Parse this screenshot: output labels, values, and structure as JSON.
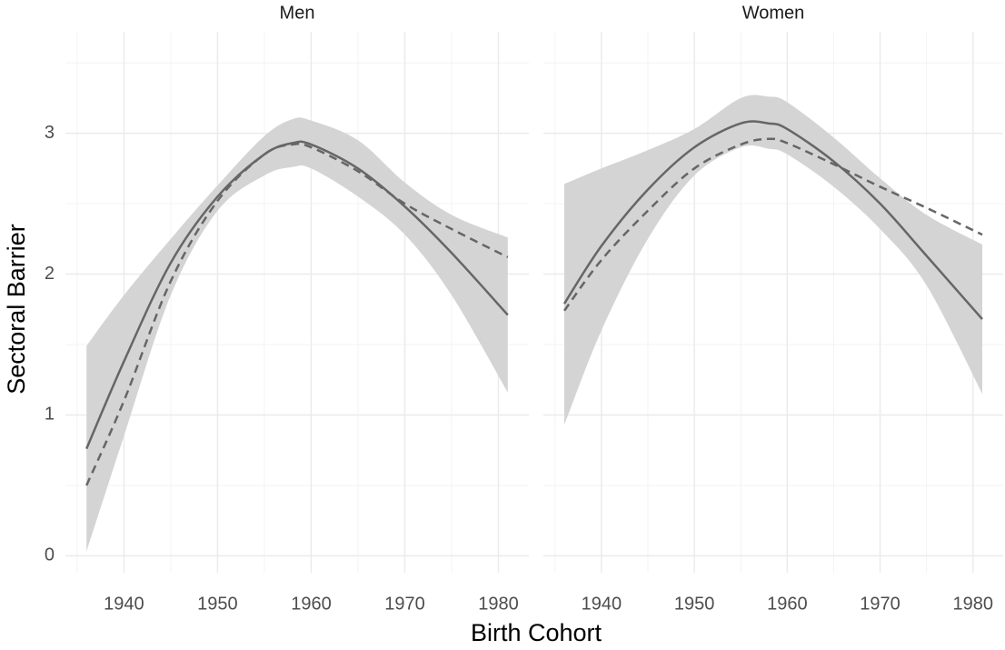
{
  "axis_labels": {
    "x": "Birth Cohort",
    "y": "Sectoral Barrier"
  },
  "chart_data": [
    {
      "type": "line",
      "title": "Men",
      "x": [
        1936,
        1940,
        1945,
        1950,
        1955,
        1958,
        1960,
        1965,
        1970,
        1975,
        1981
      ],
      "xlim": [
        1933.75,
        1983.25
      ],
      "xticks": [
        1940,
        1950,
        1960,
        1970,
        1980
      ],
      "minor_xticks": [
        1935,
        1945,
        1955,
        1965,
        1975
      ],
      "ylim": [
        -0.12,
        3.72
      ],
      "yticks": [
        0,
        1,
        2,
        3
      ],
      "minor_yticks": [
        0.5,
        1.5,
        2.5,
        3.5
      ],
      "grid": true,
      "ribbon": {
        "color": "#d4d4d4",
        "upper": [
          1.49,
          1.85,
          2.25,
          2.63,
          2.98,
          3.1,
          3.09,
          2.95,
          2.65,
          2.42,
          2.26
        ],
        "lower": [
          0.03,
          0.85,
          1.85,
          2.45,
          2.7,
          2.76,
          2.75,
          2.55,
          2.28,
          1.85,
          1.16
        ]
      },
      "series": [
        {
          "color": "#666666",
          "linestyle": "solid",
          "values": [
            0.76,
            1.38,
            2.08,
            2.55,
            2.85,
            2.93,
            2.92,
            2.75,
            2.48,
            2.15,
            1.71
          ]
        },
        {
          "color": "#666666",
          "linestyle": "dashed",
          "values": [
            0.5,
            1.1,
            1.95,
            2.52,
            2.85,
            2.92,
            2.9,
            2.73,
            2.5,
            2.32,
            2.12
          ]
        }
      ]
    },
    {
      "type": "line",
      "title": "Women",
      "x": [
        1936,
        1940,
        1945,
        1950,
        1955,
        1958,
        1960,
        1965,
        1970,
        1975,
        1981
      ],
      "xlim": [
        1933.75,
        1983.25
      ],
      "xticks": [
        1940,
        1950,
        1960,
        1970,
        1980
      ],
      "minor_xticks": [
        1935,
        1945,
        1955,
        1965,
        1975
      ],
      "ylim": [
        -0.12,
        3.72
      ],
      "yticks": [
        0,
        1,
        2,
        3
      ],
      "minor_yticks": [
        0.5,
        1.5,
        2.5,
        3.5
      ],
      "grid": true,
      "ribbon": {
        "color": "#d4d4d4",
        "upper": [
          2.64,
          2.75,
          2.88,
          3.03,
          3.25,
          3.26,
          3.22,
          2.97,
          2.68,
          2.42,
          2.21
        ],
        "lower": [
          0.93,
          1.6,
          2.25,
          2.7,
          2.9,
          2.89,
          2.85,
          2.62,
          2.32,
          1.92,
          1.15
        ]
      },
      "series": [
        {
          "color": "#666666",
          "linestyle": "solid",
          "values": [
            1.79,
            2.2,
            2.6,
            2.9,
            3.07,
            3.07,
            3.03,
            2.8,
            2.5,
            2.13,
            1.68
          ]
        },
        {
          "color": "#666666",
          "linestyle": "dashed",
          "values": [
            1.74,
            2.1,
            2.45,
            2.75,
            2.92,
            2.96,
            2.93,
            2.78,
            2.62,
            2.47,
            2.28
          ]
        }
      ]
    }
  ]
}
